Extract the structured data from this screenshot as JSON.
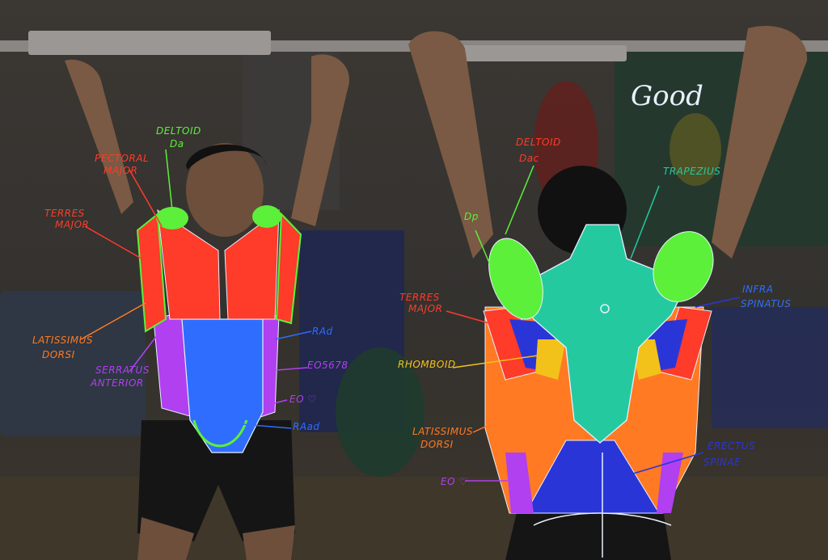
{
  "caption": "Good",
  "colors": {
    "red": "#ff3b2a",
    "green": "#5cf03a",
    "blue": "#2f6dff",
    "purple": "#b040f0",
    "orange": "#ff7a22",
    "teal": "#25c9a0",
    "navy": "#2a35d8",
    "yellow": "#f2c21a",
    "white": "#e8f0ff"
  },
  "front_labels": {
    "deltoid": "DELTOID",
    "deltoid_sub": "Da",
    "pectoral": "PECTORAL",
    "pectoral_2": "MAJOR",
    "teres": "TERRES",
    "teres_2": "MAJOR",
    "lat": "LATISSIMUS",
    "lat_2": "DORSI",
    "serratus": "SERRATUS",
    "serratus_2": "ANTERIOR",
    "ra_d": "RAd",
    "eo": "EO5678",
    "eo_heart": "EO ♡",
    "ra_ad": "RAad"
  },
  "back_labels": {
    "deltoid": "DELTOID",
    "deltoid_sub": "Dac",
    "dp": "Dp",
    "trapezius": "TRAPEZIUS",
    "teres": "TERRES",
    "teres_2": "MAJOR",
    "infra": "INFRA",
    "infra_2": "SPINATUS",
    "rhomboid": "RHOMBOID",
    "lat": "LATISSIMUS",
    "lat_2": "DORSI",
    "erector": "ERECTUS",
    "erector_2": "SPINAE",
    "eo": "EO ♡"
  }
}
